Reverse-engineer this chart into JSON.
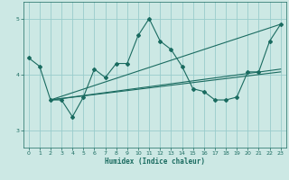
{
  "title": "",
  "xlabel": "Humidex (Indice chaleur)",
  "bg_color": "#cce8e4",
  "grid_color": "#99cccc",
  "line_color": "#1a6b60",
  "xlim": [
    -0.5,
    23.5
  ],
  "ylim": [
    2.7,
    5.3
  ],
  "yticks": [
    3,
    4,
    5
  ],
  "xticks": [
    0,
    1,
    2,
    3,
    4,
    5,
    6,
    7,
    8,
    9,
    10,
    11,
    12,
    13,
    14,
    15,
    16,
    17,
    18,
    19,
    20,
    21,
    22,
    23
  ],
  "data_line": {
    "x": [
      0,
      1,
      2,
      3,
      4,
      5,
      6,
      7,
      8,
      9,
      10,
      11,
      12,
      13,
      14,
      15,
      16,
      17,
      18,
      19,
      20,
      21,
      22,
      23
    ],
    "y": [
      4.3,
      4.15,
      3.55,
      3.55,
      3.25,
      3.6,
      4.1,
      3.95,
      4.2,
      4.2,
      4.7,
      5.0,
      4.6,
      4.45,
      4.15,
      3.75,
      3.7,
      3.55,
      3.55,
      3.6,
      4.05,
      4.05,
      4.6,
      4.9
    ]
  },
  "trend_lines": [
    {
      "x": [
        2,
        23
      ],
      "y": [
        3.55,
        4.9
      ]
    },
    {
      "x": [
        2,
        23
      ],
      "y": [
        3.55,
        4.1
      ]
    },
    {
      "x": [
        2,
        23
      ],
      "y": [
        3.55,
        4.05
      ]
    }
  ]
}
